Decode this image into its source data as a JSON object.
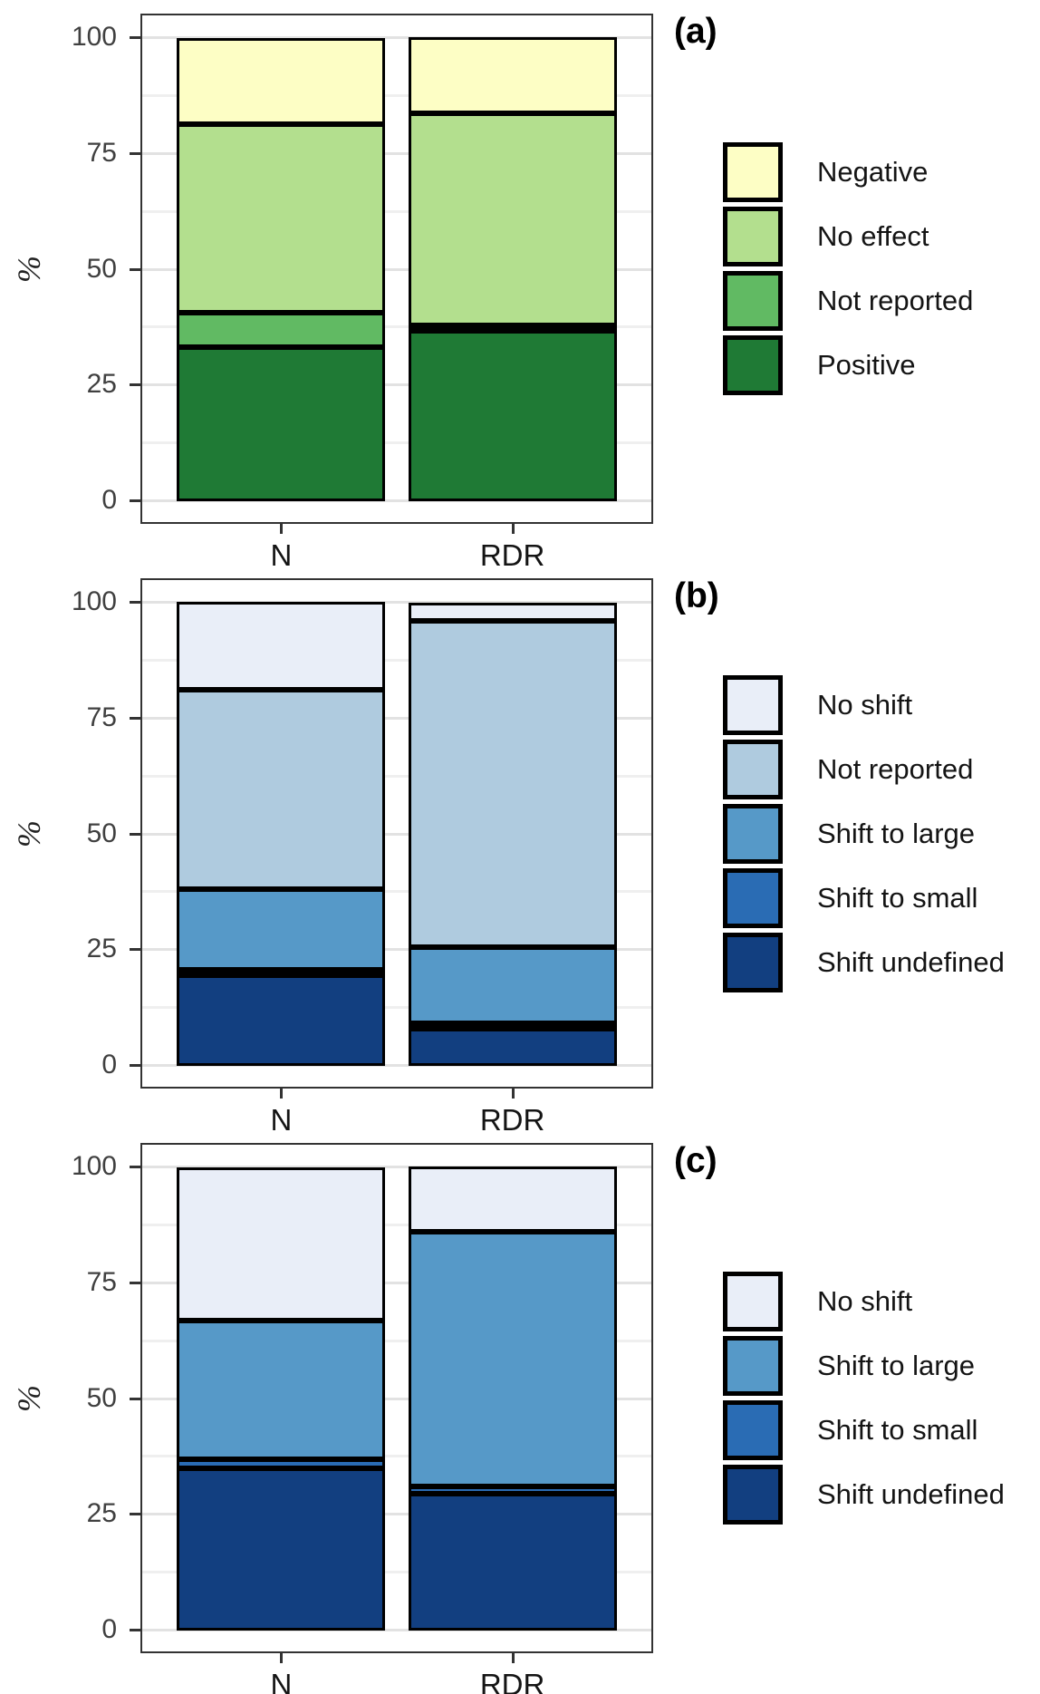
{
  "figure": {
    "ylabel": "%",
    "x_categories": [
      "N",
      "RDR"
    ],
    "axis_ticks": [
      0,
      25,
      50,
      75,
      100
    ]
  },
  "chart_data": [
    {
      "type": "bar",
      "id": "a",
      "panel_label": "(a)",
      "title": "",
      "xlabel": "",
      "ylabel": "%",
      "ylim": [
        0,
        100
      ],
      "yticks": [
        0,
        25,
        50,
        75,
        100
      ],
      "grid": "major and minor horizontal gridlines",
      "legend_position": "right",
      "categories": [
        "N",
        "RDR"
      ],
      "stacking": "bottom to top",
      "series": [
        {
          "name": "Positive",
          "color": "#1F7A35",
          "values": [
            33.3,
            36.8
          ]
        },
        {
          "name": "Not reported",
          "color": "#61BA63",
          "values": [
            7.4,
            1.0
          ]
        },
        {
          "name": "No effect",
          "color": "#B3DF8E",
          "values": [
            40.8,
            45.8
          ]
        },
        {
          "name": "Negative",
          "color": "#FDFEC5",
          "values": [
            18.5,
            16.4
          ]
        }
      ],
      "legend": [
        {
          "label": "Negative",
          "color": "#FDFEC5"
        },
        {
          "label": "No effect",
          "color": "#B3DF8E"
        },
        {
          "label": "Not reported",
          "color": "#61BA63"
        },
        {
          "label": "Positive",
          "color": "#1F7A35"
        }
      ]
    },
    {
      "type": "bar",
      "id": "b",
      "panel_label": "(b)",
      "title": "",
      "xlabel": "",
      "ylabel": "%",
      "ylim": [
        0,
        100
      ],
      "yticks": [
        0,
        25,
        50,
        75,
        100
      ],
      "grid": "major and minor horizontal gridlines",
      "legend_position": "right",
      "categories": [
        "N",
        "RDR"
      ],
      "stacking": "bottom to top",
      "series": [
        {
          "name": "Shift undefined",
          "color": "#123F80",
          "values": [
            19.5,
            8.0
          ]
        },
        {
          "name": "Shift to small",
          "color": "#2A6CB4",
          "values": [
            1.0,
            1.0
          ]
        },
        {
          "name": "Shift to large",
          "color": "#5699C8",
          "values": [
            17.5,
            16.5
          ]
        },
        {
          "name": "Not reported",
          "color": "#AFCBDF",
          "values": [
            43.0,
            70.5
          ]
        },
        {
          "name": "No shift",
          "color": "#E9EEF8",
          "values": [
            19.0,
            4.0
          ]
        }
      ],
      "legend": [
        {
          "label": "No shift",
          "color": "#E9EEF8"
        },
        {
          "label": "Not reported",
          "color": "#AFCBDF"
        },
        {
          "label": "Shift to large",
          "color": "#5699C8"
        },
        {
          "label": "Shift to small",
          "color": "#2A6CB4"
        },
        {
          "label": "Shift undefined",
          "color": "#123F80"
        }
      ]
    },
    {
      "type": "bar",
      "id": "c",
      "panel_label": "(c)",
      "title": "",
      "xlabel": "",
      "ylabel": "%",
      "ylim": [
        0,
        100
      ],
      "yticks": [
        0,
        25,
        50,
        75,
        100
      ],
      "grid": "major and minor horizontal gridlines",
      "legend_position": "right",
      "categories": [
        "N",
        "RDR"
      ],
      "stacking": "bottom to top",
      "series": [
        {
          "name": "Shift undefined",
          "color": "#123F80",
          "values": [
            35.0,
            29.5
          ]
        },
        {
          "name": "Shift to small",
          "color": "#2A6CB4",
          "values": [
            2.0,
            1.5
          ]
        },
        {
          "name": "Shift to large",
          "color": "#5699C8",
          "values": [
            30.0,
            55.0
          ]
        },
        {
          "name": "No shift",
          "color": "#E9EEF8",
          "values": [
            33.0,
            14.0
          ]
        }
      ],
      "legend": [
        {
          "label": "No shift",
          "color": "#E9EEF8"
        },
        {
          "label": "Shift to large",
          "color": "#5699C8"
        },
        {
          "label": "Shift to small",
          "color": "#2A6CB4"
        },
        {
          "label": "Shift undefined",
          "color": "#123F80"
        }
      ]
    }
  ]
}
